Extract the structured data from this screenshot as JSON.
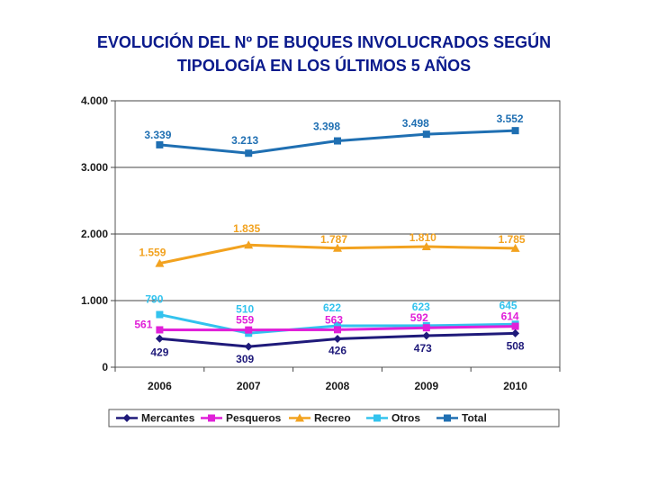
{
  "title_line1": "EVOLUCIÓN DEL Nº DE BUQUES INVOLUCRADOS SEGÚN",
  "title_line2": "TIPOLOGÍA EN LOS ÚLTIMOS 5 AÑOS",
  "chart_data": {
    "type": "line",
    "title": "EVOLUCIÓN DEL Nº DE BUQUES INVOLUCRADOS SEGÚN TIPOLOGÍA EN LOS ÚLTIMOS 5 AÑOS",
    "categories": [
      "2006",
      "2007",
      "2008",
      "2009",
      "2010"
    ],
    "ylim": [
      0,
      4000
    ],
    "yticks": [
      0,
      1000,
      2000,
      3000,
      4000
    ],
    "ytick_labels": [
      "0",
      "1.000",
      "2.000",
      "3.000",
      "4.000"
    ],
    "grid": true,
    "legend_position": "bottom",
    "series": [
      {
        "name": "Mercantes",
        "color": "#1f1a7a",
        "marker": "diamond",
        "values": [
          429,
          309,
          426,
          473,
          508
        ],
        "labels": [
          "429",
          "309",
          "426",
          "473",
          "508"
        ]
      },
      {
        "name": "Pesqueros",
        "color": "#e020d8",
        "marker": "square",
        "values": [
          561,
          559,
          563,
          592,
          614
        ],
        "labels": [
          "561",
          "559",
          "563",
          "592",
          "614"
        ]
      },
      {
        "name": "Recreo",
        "color": "#f2a21f",
        "marker": "triangle",
        "values": [
          1559,
          1835,
          1787,
          1810,
          1785
        ],
        "labels": [
          "1.559",
          "1.835",
          "1.787",
          "1.810",
          "1.785"
        ]
      },
      {
        "name": "Otros",
        "color": "#33c3ee",
        "marker": "square",
        "values": [
          790,
          510,
          622,
          623,
          645
        ],
        "labels": [
          "790",
          "510",
          "622",
          "623",
          "645"
        ]
      },
      {
        "name": "Total",
        "color": "#1f6fb2",
        "marker": "square",
        "values": [
          3339,
          3213,
          3398,
          3498,
          3552
        ],
        "labels": [
          "3.339",
          "3.213",
          "3.398",
          "3.498",
          "3.552"
        ]
      }
    ]
  }
}
